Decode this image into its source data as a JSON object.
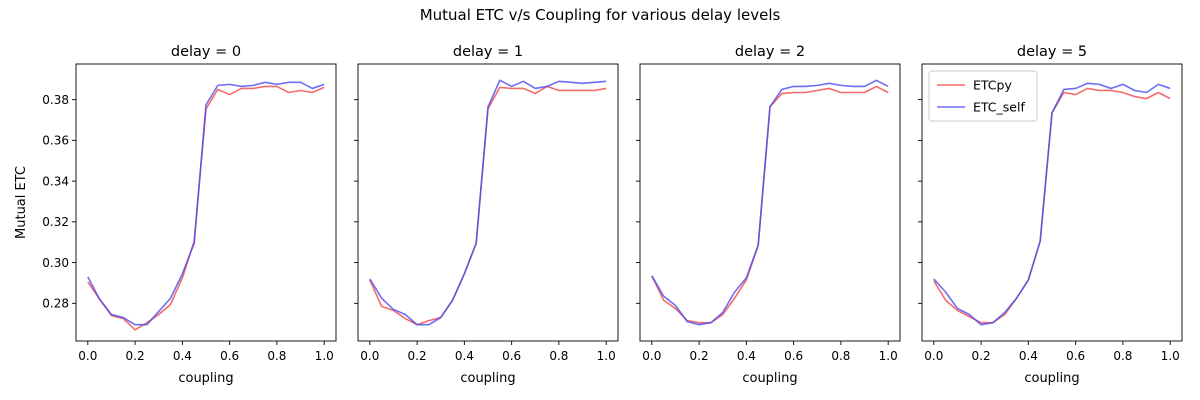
{
  "figure": {
    "suptitle": "Mutual ETC v/s Coupling for various delay levels"
  },
  "colors": {
    "ETCpy": "#f24545",
    "ETC_self": "#4a4af2",
    "overlap": "#6a3ad8",
    "axes": "#000000"
  },
  "chart_data": [
    {
      "type": "line",
      "title": "delay = 0",
      "xlabel": "coupling",
      "ylabel": "Mutual ETC",
      "xlim": [
        -0.05,
        1.05
      ],
      "ylim": [
        0.2615,
        0.3975
      ],
      "xticks": [
        "0.0",
        "0.2",
        "0.4",
        "0.6",
        "0.8",
        "1.0"
      ],
      "yticks": [
        "0.28",
        "0.30",
        "0.32",
        "0.34",
        "0.36",
        "0.38"
      ],
      "legend": null,
      "x": [
        0.0,
        0.05,
        0.1,
        0.15,
        0.2,
        0.25,
        0.3,
        0.35,
        0.4,
        0.45,
        0.5,
        0.55,
        0.6,
        0.65,
        0.7,
        0.75,
        0.8,
        0.85,
        0.9,
        0.95,
        1.0
      ],
      "series": [
        {
          "name": "ETCpy",
          "values": [
            0.2905,
            0.282,
            0.274,
            0.2725,
            0.267,
            0.2705,
            0.2745,
            0.2795,
            0.2925,
            0.3105,
            0.3755,
            0.385,
            0.3825,
            0.3855,
            0.3855,
            0.3865,
            0.3865,
            0.3835,
            0.3845,
            0.3835,
            0.386
          ]
        },
        {
          "name": "ETC_self",
          "values": [
            0.293,
            0.282,
            0.2745,
            0.273,
            0.2695,
            0.2695,
            0.276,
            0.2825,
            0.2945,
            0.3095,
            0.3775,
            0.387,
            0.3875,
            0.3865,
            0.387,
            0.3885,
            0.3875,
            0.3885,
            0.3885,
            0.3855,
            0.3875
          ]
        }
      ]
    },
    {
      "type": "line",
      "title": "delay = 1",
      "xlabel": "coupling",
      "xlim": [
        -0.05,
        1.05
      ],
      "ylim": [
        0.2615,
        0.3975
      ],
      "xticks": [
        "0.0",
        "0.2",
        "0.4",
        "0.6",
        "0.8",
        "1.0"
      ],
      "legend": null,
      "x": [
        0.0,
        0.05,
        0.1,
        0.15,
        0.2,
        0.25,
        0.3,
        0.35,
        0.4,
        0.45,
        0.5,
        0.55,
        0.6,
        0.65,
        0.7,
        0.75,
        0.8,
        0.85,
        0.9,
        0.95,
        1.0
      ],
      "series": [
        {
          "name": "ETCpy",
          "values": [
            0.2915,
            0.2785,
            0.2765,
            0.2725,
            0.2695,
            0.2715,
            0.273,
            0.2815,
            0.2945,
            0.3095,
            0.3755,
            0.386,
            0.3855,
            0.3855,
            0.383,
            0.3865,
            0.3845,
            0.3845,
            0.3845,
            0.3845,
            0.3855
          ]
        },
        {
          "name": "ETC_self",
          "values": [
            0.292,
            0.2825,
            0.277,
            0.2745,
            0.2695,
            0.2695,
            0.273,
            0.2815,
            0.2945,
            0.3095,
            0.3765,
            0.3895,
            0.3865,
            0.389,
            0.3855,
            0.3865,
            0.389,
            0.3885,
            0.388,
            0.3885,
            0.389
          ]
        }
      ]
    },
    {
      "type": "line",
      "title": "delay = 2",
      "xlabel": "coupling",
      "xlim": [
        -0.05,
        1.05
      ],
      "ylim": [
        0.2615,
        0.3975
      ],
      "xticks": [
        "0.0",
        "0.2",
        "0.4",
        "0.6",
        "0.8",
        "1.0"
      ],
      "legend": null,
      "x": [
        0.0,
        0.05,
        0.1,
        0.15,
        0.2,
        0.25,
        0.3,
        0.35,
        0.4,
        0.45,
        0.5,
        0.55,
        0.6,
        0.65,
        0.7,
        0.75,
        0.8,
        0.85,
        0.9,
        0.95,
        1.0
      ],
      "series": [
        {
          "name": "ETCpy",
          "values": [
            0.2935,
            0.2815,
            0.2775,
            0.2715,
            0.2705,
            0.2705,
            0.2745,
            0.2825,
            0.2915,
            0.3085,
            0.3765,
            0.383,
            0.3835,
            0.3835,
            0.3845,
            0.3855,
            0.3835,
            0.3835,
            0.3835,
            0.3865,
            0.3835
          ]
        },
        {
          "name": "ETC_self",
          "values": [
            0.2935,
            0.2835,
            0.279,
            0.271,
            0.2695,
            0.2705,
            0.2755,
            0.2855,
            0.2925,
            0.3085,
            0.3765,
            0.385,
            0.3865,
            0.3865,
            0.387,
            0.388,
            0.387,
            0.3865,
            0.3865,
            0.3895,
            0.3865
          ]
        }
      ]
    },
    {
      "type": "line",
      "title": "delay = 5",
      "xlabel": "coupling",
      "xlim": [
        -0.05,
        1.05
      ],
      "ylim": [
        0.2615,
        0.3975
      ],
      "xticks": [
        "0.0",
        "0.2",
        "0.4",
        "0.6",
        "0.8",
        "1.0"
      ],
      "legend": {
        "position": "upper left",
        "entries": [
          "ETCpy",
          "ETC_self"
        ]
      },
      "x": [
        0.0,
        0.05,
        0.1,
        0.15,
        0.2,
        0.25,
        0.3,
        0.35,
        0.4,
        0.45,
        0.5,
        0.55,
        0.6,
        0.65,
        0.7,
        0.75,
        0.8,
        0.85,
        0.9,
        0.95,
        1.0
      ],
      "series": [
        {
          "name": "ETCpy",
          "values": [
            0.291,
            0.2815,
            0.2765,
            0.2735,
            0.2705,
            0.2705,
            0.2745,
            0.2825,
            0.2915,
            0.3105,
            0.3735,
            0.3835,
            0.3825,
            0.3855,
            0.3845,
            0.3845,
            0.3835,
            0.3815,
            0.3805,
            0.3835,
            0.3805
          ]
        },
        {
          "name": "ETC_self",
          "values": [
            0.292,
            0.2855,
            0.2775,
            0.2745,
            0.2695,
            0.2705,
            0.2755,
            0.2825,
            0.2915,
            0.3105,
            0.3735,
            0.385,
            0.3855,
            0.388,
            0.3875,
            0.3855,
            0.3875,
            0.3845,
            0.3835,
            0.3875,
            0.3855
          ]
        }
      ]
    }
  ]
}
